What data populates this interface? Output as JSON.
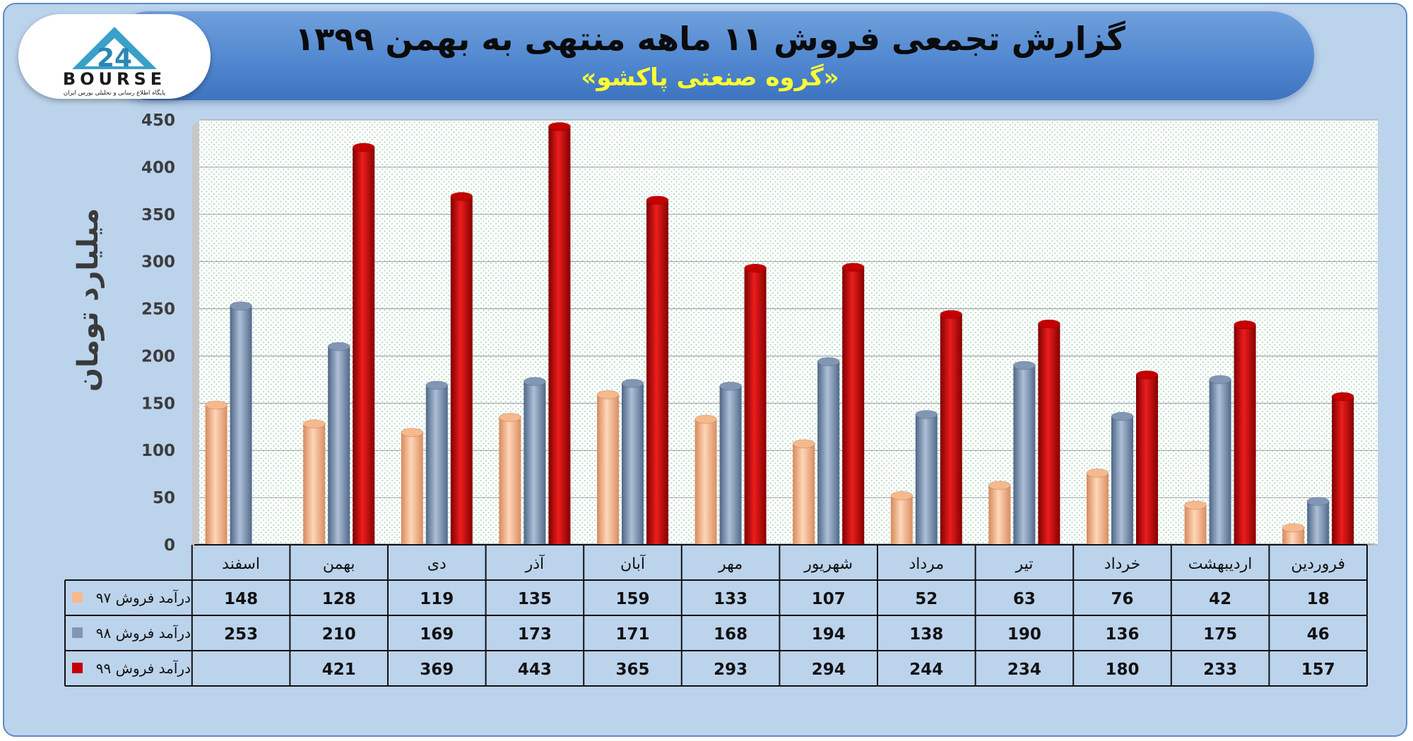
{
  "header": {
    "title": "گزارش تجمعی فروش ۱۱ ماهه منتهی به بهمن ۱۳۹۹",
    "subtitle": "«گروه صنعتی پاکشو»"
  },
  "logo": {
    "text": "BOURSE",
    "tagline": "پایگاه اطلاع رسانی و تحلیلی بورس ایران"
  },
  "colors": {
    "frame": "#bcd3ec",
    "banner": "#4f86cf",
    "title": "#0b0b0b",
    "subtitle": "#ffff33"
  },
  "chart_data": {
    "type": "bar",
    "title": "گزارش تجمعی فروش ۱۱ ماهه منتهی به بهمن ۱۳۹۹",
    "ylabel": "میلیارد تومان",
    "ylim": [
      0,
      450
    ],
    "yticks": [
      0,
      50,
      100,
      150,
      200,
      250,
      300,
      350,
      400,
      450
    ],
    "grid": true,
    "legend": "table-left",
    "categories": [
      "فروردین",
      "اردیبهشت",
      "خرداد",
      "تیر",
      "مرداد",
      "شهریور",
      "مهر",
      "آبان",
      "آذر",
      "دی",
      "بهمن",
      "اسفند"
    ],
    "series": [
      {
        "name": "درآمد فروش ۹۷",
        "color": "#f7b98b",
        "values": [
          18,
          42,
          76,
          63,
          52,
          107,
          133,
          159,
          135,
          119,
          128,
          148
        ]
      },
      {
        "name": "درآمد فروش ۹۸",
        "color": "#8096b4",
        "values": [
          46,
          175,
          136,
          190,
          138,
          194,
          168,
          171,
          173,
          169,
          210,
          253
        ]
      },
      {
        "name": "درآمد فروش ۹۹",
        "color": "#c40000",
        "values": [
          157,
          233,
          180,
          234,
          244,
          294,
          293,
          365,
          443,
          369,
          421,
          null
        ]
      }
    ]
  }
}
